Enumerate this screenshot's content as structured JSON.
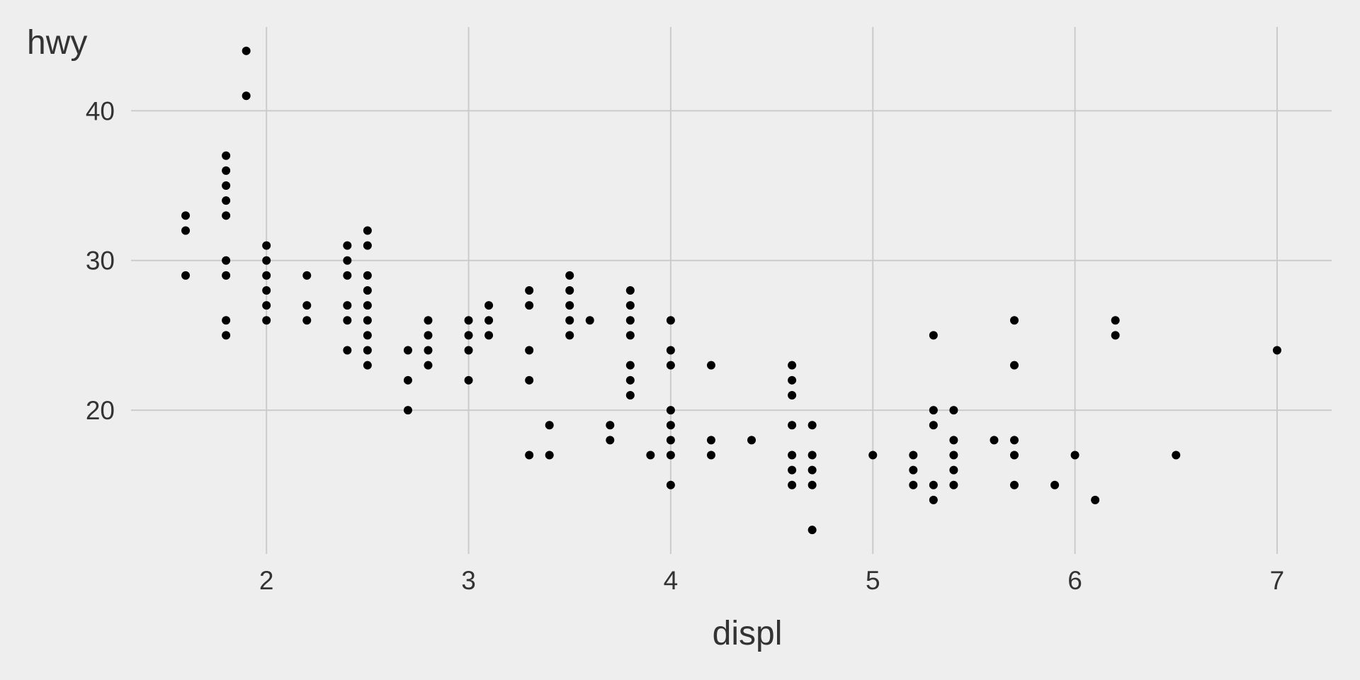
{
  "chart_data": {
    "type": "scatter",
    "title": "",
    "xlabel": "displ",
    "ylabel": "hwy",
    "xlim": [
      1.33,
      7.27
    ],
    "ylim": [
      10.4,
      45.6
    ],
    "x_ticks": [
      2,
      3,
      4,
      5,
      6,
      7
    ],
    "x_tick_labels": [
      "2",
      "3",
      "4",
      "5",
      "6",
      "7"
    ],
    "y_ticks": [
      20,
      30,
      40
    ],
    "y_tick_labels": [
      "20",
      "30",
      "40"
    ],
    "grid": true,
    "legend": "none",
    "point_color": "#000000",
    "background": "#eeeeee",
    "grid_color": "#cbcbcb",
    "points": [
      [
        1.6,
        33
      ],
      [
        1.6,
        32
      ],
      [
        1.6,
        29
      ],
      [
        1.8,
        37
      ],
      [
        1.8,
        36
      ],
      [
        1.8,
        35
      ],
      [
        1.8,
        34
      ],
      [
        1.8,
        33
      ],
      [
        1.8,
        30
      ],
      [
        1.8,
        29
      ],
      [
        1.8,
        26
      ],
      [
        1.8,
        25
      ],
      [
        1.9,
        44
      ],
      [
        1.9,
        41
      ],
      [
        2.0,
        31
      ],
      [
        2.0,
        30
      ],
      [
        2.0,
        29
      ],
      [
        2.0,
        28
      ],
      [
        2.0,
        27
      ],
      [
        2.0,
        26
      ],
      [
        2.2,
        29
      ],
      [
        2.2,
        27
      ],
      [
        2.2,
        26
      ],
      [
        2.4,
        31
      ],
      [
        2.4,
        30
      ],
      [
        2.4,
        29
      ],
      [
        2.4,
        27
      ],
      [
        2.4,
        26
      ],
      [
        2.4,
        24
      ],
      [
        2.5,
        32
      ],
      [
        2.5,
        31
      ],
      [
        2.5,
        29
      ],
      [
        2.5,
        28
      ],
      [
        2.5,
        27
      ],
      [
        2.5,
        26
      ],
      [
        2.5,
        25
      ],
      [
        2.5,
        24
      ],
      [
        2.5,
        23
      ],
      [
        2.7,
        24
      ],
      [
        2.7,
        22
      ],
      [
        2.7,
        20
      ],
      [
        2.8,
        26
      ],
      [
        2.8,
        25
      ],
      [
        2.8,
        24
      ],
      [
        2.8,
        23
      ],
      [
        3.0,
        26
      ],
      [
        3.0,
        25
      ],
      [
        3.0,
        24
      ],
      [
        3.0,
        22
      ],
      [
        3.1,
        27
      ],
      [
        3.1,
        26
      ],
      [
        3.1,
        25
      ],
      [
        3.3,
        28
      ],
      [
        3.3,
        27
      ],
      [
        3.3,
        24
      ],
      [
        3.3,
        22
      ],
      [
        3.3,
        17
      ],
      [
        3.4,
        19
      ],
      [
        3.4,
        17
      ],
      [
        3.5,
        29
      ],
      [
        3.5,
        28
      ],
      [
        3.5,
        27
      ],
      [
        3.5,
        26
      ],
      [
        3.5,
        25
      ],
      [
        3.6,
        26
      ],
      [
        3.7,
        19
      ],
      [
        3.7,
        18
      ],
      [
        3.8,
        28
      ],
      [
        3.8,
        27
      ],
      [
        3.8,
        26
      ],
      [
        3.8,
        25
      ],
      [
        3.8,
        23
      ],
      [
        3.8,
        22
      ],
      [
        3.8,
        21
      ],
      [
        3.9,
        17
      ],
      [
        4.0,
        26
      ],
      [
        4.0,
        24
      ],
      [
        4.0,
        23
      ],
      [
        4.0,
        20
      ],
      [
        4.0,
        19
      ],
      [
        4.0,
        18
      ],
      [
        4.0,
        17
      ],
      [
        4.0,
        15
      ],
      [
        4.2,
        23
      ],
      [
        4.2,
        18
      ],
      [
        4.2,
        17
      ],
      [
        4.4,
        18
      ],
      [
        4.6,
        23
      ],
      [
        4.6,
        22
      ],
      [
        4.6,
        21
      ],
      [
        4.6,
        19
      ],
      [
        4.6,
        17
      ],
      [
        4.6,
        16
      ],
      [
        4.6,
        15
      ],
      [
        4.7,
        19
      ],
      [
        4.7,
        17
      ],
      [
        4.7,
        16
      ],
      [
        4.7,
        15
      ],
      [
        4.7,
        12
      ],
      [
        5.0,
        17
      ],
      [
        5.2,
        17
      ],
      [
        5.2,
        16
      ],
      [
        5.2,
        15
      ],
      [
        5.3,
        25
      ],
      [
        5.3,
        20
      ],
      [
        5.3,
        19
      ],
      [
        5.3,
        15
      ],
      [
        5.3,
        14
      ],
      [
        5.4,
        20
      ],
      [
        5.4,
        18
      ],
      [
        5.4,
        17
      ],
      [
        5.4,
        16
      ],
      [
        5.4,
        15
      ],
      [
        5.6,
        18
      ],
      [
        5.7,
        26
      ],
      [
        5.7,
        23
      ],
      [
        5.7,
        18
      ],
      [
        5.7,
        17
      ],
      [
        5.7,
        15
      ],
      [
        5.9,
        15
      ],
      [
        6.0,
        17
      ],
      [
        6.1,
        14
      ],
      [
        6.2,
        26
      ],
      [
        6.2,
        25
      ],
      [
        6.5,
        17
      ],
      [
        7.0,
        24
      ]
    ]
  }
}
